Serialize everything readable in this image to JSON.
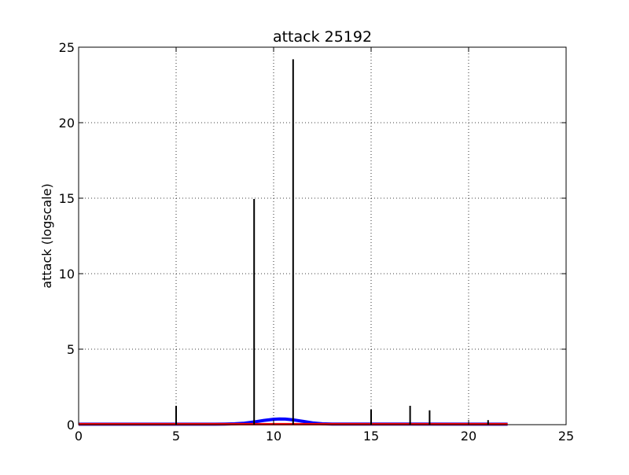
{
  "chart_data": {
    "type": "bar",
    "title": "attack 25192",
    "xlabel": "",
    "ylabel": "attack (logscale)",
    "xlim": [
      0,
      25
    ],
    "ylim": [
      0,
      25
    ],
    "grid": true,
    "x_ticks": [
      "0",
      "5",
      "10",
      "15",
      "20",
      "25"
    ],
    "y_ticks": [
      "0",
      "5",
      "10",
      "15",
      "20",
      "25"
    ],
    "bars": {
      "color": "#000000",
      "points": [
        {
          "x": 5,
          "y": 1.25
        },
        {
          "x": 9,
          "y": 14.95
        },
        {
          "x": 11,
          "y": 24.2
        },
        {
          "x": 15,
          "y": 1.0
        },
        {
          "x": 17,
          "y": 1.25
        },
        {
          "x": 18,
          "y": 0.95
        },
        {
          "x": 21,
          "y": 0.3
        }
      ]
    },
    "curves": [
      {
        "color": "#0000ff",
        "x": [
          0,
          7,
          7.5,
          8,
          8.5,
          9,
          9.5,
          10,
          10.3,
          10.6,
          11,
          11.5,
          12,
          12.5,
          13,
          22
        ],
        "y": [
          0.03,
          0.03,
          0.04,
          0.06,
          0.1,
          0.18,
          0.28,
          0.36,
          0.38,
          0.37,
          0.32,
          0.22,
          0.12,
          0.06,
          0.04,
          0.03
        ]
      },
      {
        "color": "#ff0000",
        "x": [
          0,
          22
        ],
        "y": [
          0.03,
          0.03
        ]
      }
    ]
  }
}
